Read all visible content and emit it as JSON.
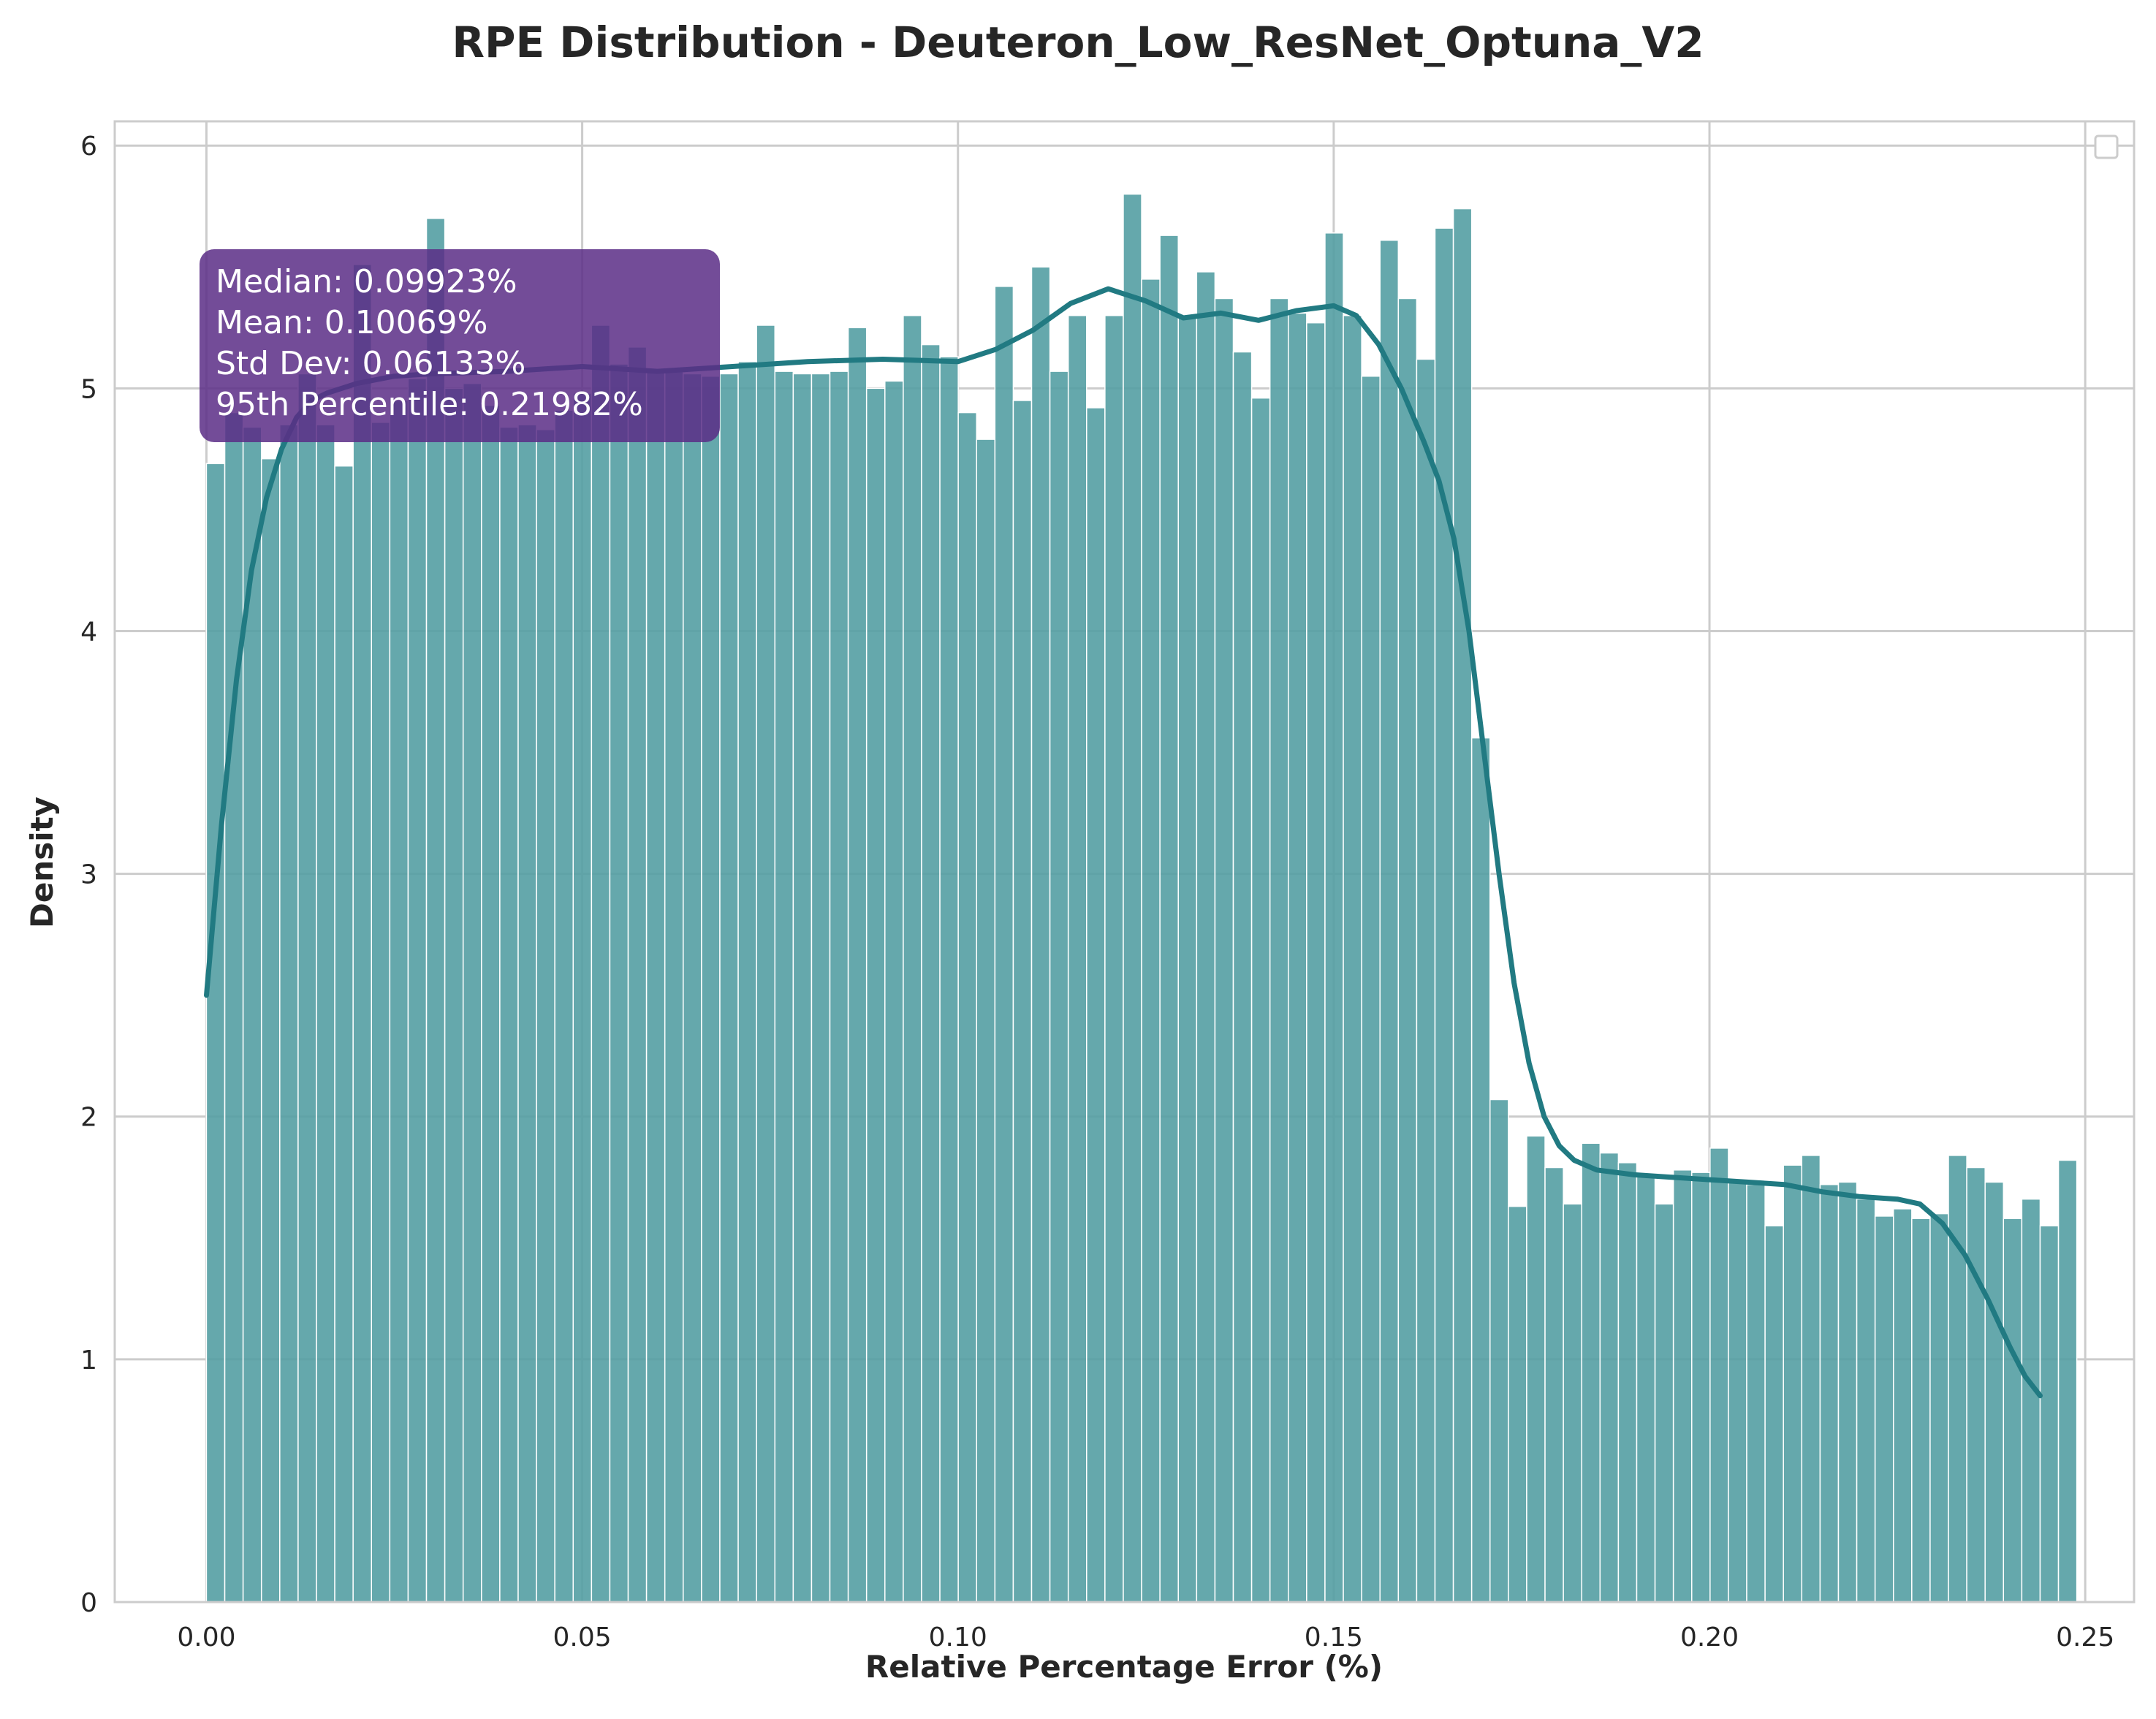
{
  "chart_data": {
    "type": "bar",
    "title": "RPE Distribution - Deuteron_Low_ResNet_Optuna_V2",
    "xlabel": "Relative Percentage Error (%)",
    "ylabel": "Density",
    "xlim": [
      -0.0122,
      0.2565
    ],
    "ylim": [
      0,
      6.1
    ],
    "xticks": [
      0.0,
      0.05,
      0.1,
      0.15,
      0.2,
      0.25
    ],
    "xtick_labels": [
      "0.00",
      "0.05",
      "0.10",
      "0.15",
      "0.20",
      "0.25"
    ],
    "yticks": [
      0,
      1,
      2,
      3,
      4,
      5,
      6
    ],
    "ytick_labels": [
      "0",
      "1",
      "2",
      "3",
      "4",
      "5",
      "6"
    ],
    "grid": true,
    "legend": "top-right (empty)",
    "bin_start": 0.0,
    "bin_width": 0.00244,
    "values": [
      4.69,
      4.9,
      4.84,
      4.71,
      4.85,
      5.06,
      4.85,
      4.68,
      5.51,
      4.86,
      4.95,
      5.04,
      5.7,
      5.0,
      5.02,
      4.93,
      4.84,
      4.85,
      4.83,
      4.91,
      4.98,
      5.26,
      5.1,
      5.17,
      5.08,
      5.07,
      5.06,
      5.05,
      5.06,
      5.11,
      5.26,
      5.07,
      5.06,
      5.06,
      5.07,
      5.25,
      5.0,
      5.03,
      5.3,
      5.18,
      5.13,
      4.9,
      4.79,
      5.42,
      4.95,
      5.5,
      5.07,
      5.3,
      4.92,
      5.3,
      5.8,
      5.45,
      5.63,
      5.29,
      5.48,
      5.37,
      5.15,
      4.96,
      5.37,
      5.31,
      5.27,
      5.64,
      5.3,
      5.05,
      5.61,
      5.37,
      5.12,
      5.66,
      5.74,
      3.56,
      2.07,
      1.63,
      1.92,
      1.79,
      1.64,
      1.89,
      1.85,
      1.81,
      1.76,
      1.64,
      1.78,
      1.77,
      1.87,
      1.73,
      1.72,
      1.55,
      1.8,
      1.84,
      1.72,
      1.73,
      1.66,
      1.59,
      1.62,
      1.58,
      1.6,
      1.84,
      1.79,
      1.73,
      1.58,
      1.66,
      1.55,
      1.82
    ],
    "kde": {
      "x": [
        0.0,
        0.002,
        0.004,
        0.006,
        0.008,
        0.01,
        0.012,
        0.014,
        0.016,
        0.02,
        0.025,
        0.03,
        0.04,
        0.05,
        0.06,
        0.07,
        0.08,
        0.09,
        0.1,
        0.105,
        0.11,
        0.115,
        0.12,
        0.125,
        0.13,
        0.135,
        0.14,
        0.145,
        0.15,
        0.153,
        0.156,
        0.159,
        0.162,
        0.164,
        0.166,
        0.168,
        0.17,
        0.172,
        0.174,
        0.176,
        0.178,
        0.18,
        0.182,
        0.185,
        0.19,
        0.195,
        0.2,
        0.205,
        0.21,
        0.215,
        0.22,
        0.225,
        0.228,
        0.231,
        0.234,
        0.237,
        0.24,
        0.242,
        0.244
      ],
      "y": [
        2.5,
        3.2,
        3.8,
        4.25,
        4.55,
        4.75,
        4.88,
        4.95,
        4.98,
        5.02,
        5.05,
        5.06,
        5.07,
        5.09,
        5.07,
        5.09,
        5.11,
        5.12,
        5.11,
        5.16,
        5.24,
        5.35,
        5.41,
        5.36,
        5.29,
        5.31,
        5.28,
        5.32,
        5.34,
        5.3,
        5.18,
        5.0,
        4.78,
        4.62,
        4.38,
        4.0,
        3.5,
        3.0,
        2.55,
        2.22,
        2.0,
        1.88,
        1.82,
        1.78,
        1.76,
        1.75,
        1.74,
        1.73,
        1.72,
        1.69,
        1.67,
        1.66,
        1.64,
        1.56,
        1.43,
        1.25,
        1.05,
        0.93,
        0.85
      ]
    },
    "bar_color": "#549fa3",
    "line_color": "#217a82",
    "stats_box": {
      "color": "#5a2d86",
      "lines": [
        "Median: 0.09923%",
        "Mean: 0.10069%",
        "Std Dev: 0.06133%",
        "95th Percentile: 0.21982%"
      ]
    }
  }
}
